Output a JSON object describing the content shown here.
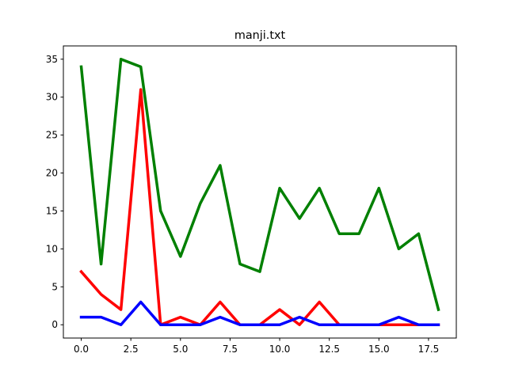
{
  "chart_data": {
    "type": "line",
    "title": "manji.txt",
    "xlabel": "",
    "ylabel": "",
    "x": [
      0,
      1,
      2,
      3,
      4,
      5,
      6,
      7,
      8,
      9,
      10,
      11,
      12,
      13,
      14,
      15,
      16,
      17,
      18
    ],
    "xlim": [
      -0.9,
      18.9
    ],
    "ylim": [
      -1.75,
      36.75
    ],
    "x_ticks": [
      0,
      2.5,
      5,
      7.5,
      10,
      12.5,
      15,
      17.5
    ],
    "x_tick_labels": [
      "0.0",
      "2.5",
      "5.0",
      "7.5",
      "10.0",
      "12.5",
      "15.0",
      "17.5"
    ],
    "y_ticks": [
      0,
      5,
      10,
      15,
      20,
      25,
      30,
      35
    ],
    "y_tick_labels": [
      "0",
      "5",
      "10",
      "15",
      "20",
      "25",
      "30",
      "35"
    ],
    "grid": false,
    "series": [
      {
        "color": "#ff0000",
        "values": [
          7,
          4,
          2,
          31,
          0,
          1,
          0,
          3,
          0,
          0,
          2,
          0,
          3,
          0,
          0,
          0,
          0,
          0,
          0
        ]
      },
      {
        "color": "#008000",
        "values": [
          34,
          8,
          35,
          34,
          15,
          9,
          16,
          21,
          8,
          7,
          18,
          14,
          18,
          12,
          12,
          18,
          10,
          12,
          2
        ]
      },
      {
        "color": "#0000ff",
        "values": [
          1,
          1,
          0,
          3,
          0,
          0,
          0,
          1,
          0,
          0,
          0,
          1,
          0,
          0,
          0,
          0,
          1,
          0,
          0
        ]
      }
    ]
  }
}
